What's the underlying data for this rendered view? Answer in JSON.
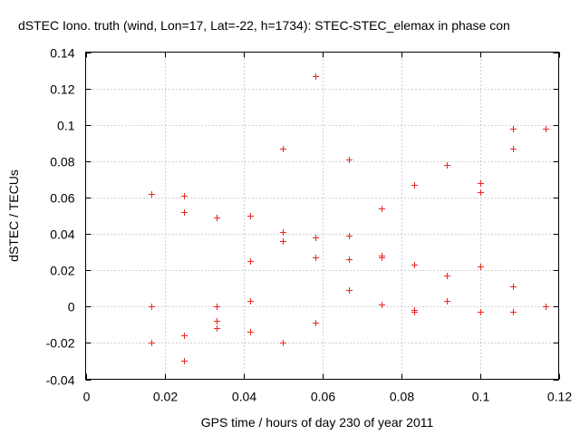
{
  "chart_data": {
    "type": "scatter",
    "title": "dSTEC Iono. truth (wind, Lon=17, Lat=-22, h=1734): STEC-STEC_elemax in phase con",
    "xlabel": "GPS time / hours of day 230 of year 2011",
    "ylabel": "dSTEC  / TECUs",
    "xlim": [
      0,
      0.12
    ],
    "ylim": [
      -0.04,
      0.14
    ],
    "x_ticks": [
      "0",
      "0.02",
      "0.04",
      "0.06",
      "0.08",
      "0.1",
      "0.12"
    ],
    "y_ticks": [
      "-0.04",
      "-0.02",
      "0",
      "0.02",
      "0.04",
      "0.06",
      "0.08",
      "0.1",
      "0.12",
      "0.14"
    ],
    "grid": true,
    "marker": "+",
    "marker_color": "#e8281e",
    "points": [
      {
        "x": 0.0167,
        "y": 0.062
      },
      {
        "x": 0.0167,
        "y": 0.0
      },
      {
        "x": 0.0167,
        "y": -0.02
      },
      {
        "x": 0.025,
        "y": 0.061
      },
      {
        "x": 0.025,
        "y": 0.052
      },
      {
        "x": 0.025,
        "y": -0.016
      },
      {
        "x": 0.025,
        "y": -0.03
      },
      {
        "x": 0.0333,
        "y": 0.049
      },
      {
        "x": 0.0333,
        "y": 0.0
      },
      {
        "x": 0.0333,
        "y": -0.008
      },
      {
        "x": 0.0333,
        "y": -0.012
      },
      {
        "x": 0.0417,
        "y": 0.05
      },
      {
        "x": 0.0417,
        "y": 0.025
      },
      {
        "x": 0.0417,
        "y": 0.003
      },
      {
        "x": 0.0417,
        "y": -0.014
      },
      {
        "x": 0.05,
        "y": 0.087
      },
      {
        "x": 0.05,
        "y": 0.041
      },
      {
        "x": 0.05,
        "y": 0.036
      },
      {
        "x": 0.05,
        "y": -0.02
      },
      {
        "x": 0.0583,
        "y": 0.127
      },
      {
        "x": 0.0583,
        "y": 0.038
      },
      {
        "x": 0.0583,
        "y": 0.027
      },
      {
        "x": 0.0583,
        "y": -0.009
      },
      {
        "x": 0.0667,
        "y": 0.081
      },
      {
        "x": 0.0667,
        "y": 0.039
      },
      {
        "x": 0.0667,
        "y": 0.026
      },
      {
        "x": 0.0667,
        "y": 0.009
      },
      {
        "x": 0.075,
        "y": 0.054
      },
      {
        "x": 0.075,
        "y": 0.028
      },
      {
        "x": 0.075,
        "y": 0.027
      },
      {
        "x": 0.075,
        "y": 0.001
      },
      {
        "x": 0.0833,
        "y": 0.067
      },
      {
        "x": 0.0833,
        "y": 0.023
      },
      {
        "x": 0.0833,
        "y": -0.002
      },
      {
        "x": 0.0833,
        "y": -0.003
      },
      {
        "x": 0.0917,
        "y": 0.078
      },
      {
        "x": 0.0917,
        "y": 0.017
      },
      {
        "x": 0.0917,
        "y": 0.003
      },
      {
        "x": 0.1,
        "y": 0.068
      },
      {
        "x": 0.1,
        "y": 0.063
      },
      {
        "x": 0.1,
        "y": 0.022
      },
      {
        "x": 0.1,
        "y": -0.003
      },
      {
        "x": 0.1083,
        "y": 0.098
      },
      {
        "x": 0.1083,
        "y": 0.087
      },
      {
        "x": 0.1083,
        "y": 0.011
      },
      {
        "x": 0.1083,
        "y": -0.003
      },
      {
        "x": 0.1167,
        "y": 0.098
      },
      {
        "x": 0.1167,
        "y": 0.0
      }
    ]
  }
}
